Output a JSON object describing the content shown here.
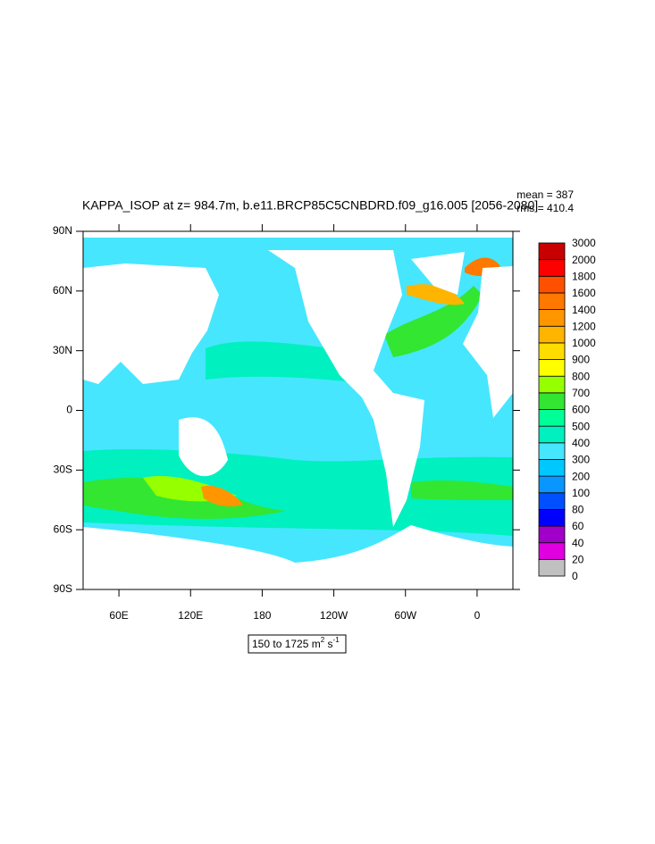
{
  "title": "KAPPA_ISOP at z= 984.7m, b.e11.BRCP85C5CNBDRD.f09_g16.005 [2056-2080]",
  "annotations": {
    "mean": "mean = 387",
    "rms": "rms = 410.4"
  },
  "map": {
    "xlim": [
      30,
      390
    ],
    "ylim": [
      -90,
      90
    ],
    "yticks": [
      {
        "value": 90,
        "label": "90N"
      },
      {
        "value": 60,
        "label": "60N"
      },
      {
        "value": 30,
        "label": "30N"
      },
      0,
      {
        "value": -30,
        "label": "30S"
      },
      {
        "value": -60,
        "label": "60S"
      },
      {
        "value": -90,
        "label": "90S"
      }
    ],
    "xticks": [
      {
        "value": 60,
        "label": "60E"
      },
      {
        "value": 120,
        "label": "120E"
      },
      180,
      {
        "value": 240,
        "label": "120W"
      },
      {
        "value": 300,
        "label": "60W"
      },
      {
        "value": 360,
        "label": "0"
      }
    ]
  },
  "colorbar": {
    "levels": [
      0,
      20,
      40,
      60,
      80,
      100,
      200,
      300,
      400,
      500,
      600,
      700,
      800,
      900,
      1000,
      1200,
      1400,
      1600,
      1800,
      2000,
      3000
    ],
    "colors": [
      "#c0c0c0",
      "#e000e0",
      "#a000c8",
      "#0000ff",
      "#0050ff",
      "#0a96ff",
      "#00c8ff",
      "#46e6ff",
      "#00f0c0",
      "#00ff96",
      "#32e632",
      "#96ff00",
      "#ffff00",
      "#ffdc00",
      "#ffb400",
      "#ff9600",
      "#ff7800",
      "#ff5000",
      "#ff0000",
      "#c80000"
    ]
  },
  "units_box": [
    "150 to 1725 m",
    "2",
    " s",
    "-1"
  ]
}
